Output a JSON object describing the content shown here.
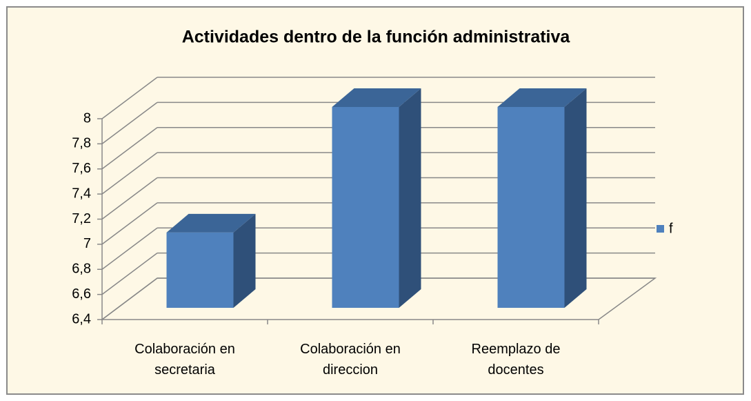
{
  "chart_data": {
    "type": "bar3d",
    "title": "Actividades dentro de la función administrativa",
    "categories": [
      "Colaboración en secretaria",
      "Colaboración en direccion",
      "Reemplazo de docentes"
    ],
    "series": [
      {
        "name": "f",
        "color": "#4f81bd",
        "values": [
          7,
          8,
          8
        ]
      }
    ],
    "ylim": [
      6.4,
      8
    ],
    "yticks": [
      {
        "value": 6.4,
        "label": "6,4"
      },
      {
        "value": 6.6,
        "label": "6,6"
      },
      {
        "value": 6.8,
        "label": "6,8"
      },
      7,
      {
        "value": 7.2,
        "label": "7,2"
      },
      {
        "value": 7.4,
        "label": "7,4"
      },
      {
        "value": 7.6,
        "label": "7,6"
      },
      {
        "value": 7.8,
        "label": "7,8"
      },
      8
    ],
    "grid": true,
    "legend": "right"
  }
}
